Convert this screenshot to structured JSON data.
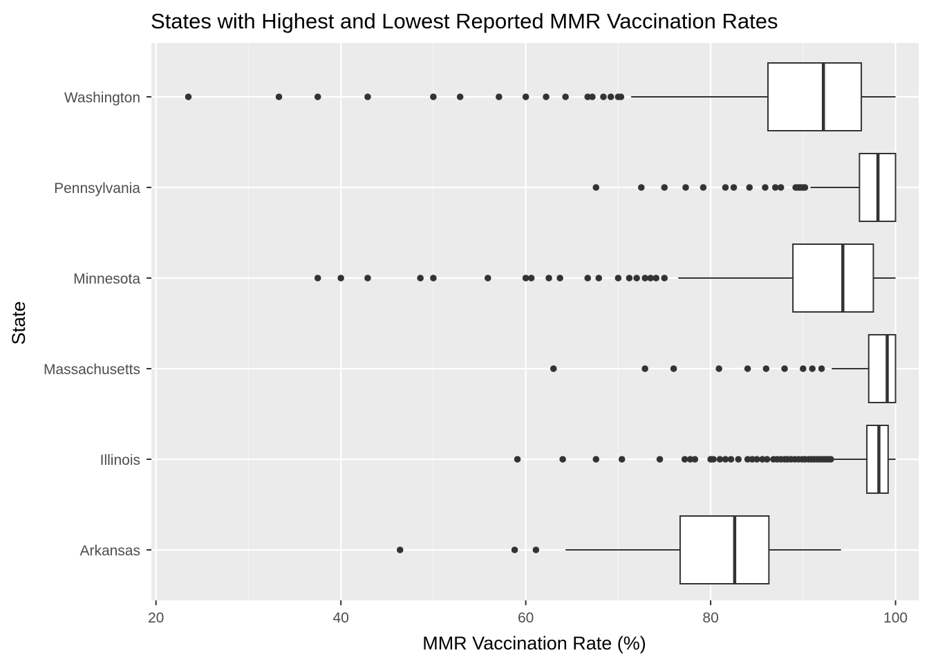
{
  "chart_data": {
    "type": "boxplot",
    "orientation": "horizontal",
    "title": "States with Highest and Lowest Reported MMR Vaccination Rates",
    "xlabel": "MMR Vaccination Rate (%)",
    "ylabel": "State",
    "xlim": [
      19.5,
      102.5
    ],
    "x_ticks": [
      20,
      40,
      60,
      80,
      100
    ],
    "x_tick_labels": [
      "20",
      "40",
      "60",
      "80",
      "100"
    ],
    "grid": true,
    "legend": "none",
    "categories": [
      "Washington",
      "Pennsylvania",
      "Minnesota",
      "Massachusetts",
      "Illinois",
      "Arkansas"
    ],
    "boxes": [
      {
        "category": "Washington",
        "whisker_low": 71.4,
        "q1": 86.2,
        "median": 92.2,
        "q3": 96.3,
        "whisker_high": 100,
        "outliers": [
          23.5,
          33.3,
          37.5,
          42.9,
          50.0,
          52.9,
          57.1,
          60.0,
          62.2,
          64.3,
          66.7,
          67.2,
          68.4,
          69.2,
          70.0,
          70.3
        ]
      },
      {
        "category": "Pennsylvania",
        "whisker_low": 90.8,
        "q1": 96.1,
        "median": 98.1,
        "q3": 100,
        "whisker_high": 100,
        "outliers": [
          67.6,
          72.5,
          75.0,
          77.3,
          79.2,
          81.6,
          82.5,
          84.2,
          85.9,
          87.0,
          87.6,
          89.2,
          89.4,
          89.6,
          89.8,
          90.0,
          90.2
        ]
      },
      {
        "category": "Minnesota",
        "whisker_low": 76.5,
        "q1": 88.9,
        "median": 94.3,
        "q3": 97.6,
        "whisker_high": 100,
        "outliers": [
          37.5,
          40.0,
          42.9,
          48.6,
          50.0,
          55.9,
          60.0,
          60.6,
          62.5,
          63.7,
          66.7,
          67.9,
          70.0,
          71.2,
          72.0,
          72.9,
          73.5,
          74.1,
          75.0
        ]
      },
      {
        "category": "Massachusetts",
        "whisker_low": 93.1,
        "q1": 97.1,
        "median": 99.1,
        "q3": 100,
        "whisker_high": 100,
        "outliers": [
          63.0,
          72.9,
          76.0,
          80.9,
          84.0,
          86.0,
          88.0,
          90.0,
          91.0,
          92.0
        ]
      },
      {
        "category": "Illinois",
        "whisker_low": 93.3,
        "q1": 96.9,
        "median": 98.2,
        "q3": 99.2,
        "whisker_high": 100,
        "outliers": [
          59.1,
          64.0,
          67.6,
          70.4,
          74.5,
          77.2,
          77.8,
          78.3,
          80.0,
          80.3,
          81.0,
          81.6,
          82.2,
          83.0,
          84.0,
          84.5,
          85.0,
          85.6,
          86.1,
          86.8,
          87.2,
          87.6,
          88.0,
          88.3,
          88.7,
          89.1,
          89.5,
          89.9,
          90.2,
          90.6,
          90.9,
          91.2,
          91.5,
          91.8,
          92.1,
          92.4,
          92.7,
          93.0
        ]
      },
      {
        "category": "Arkansas",
        "whisker_low": 64.3,
        "q1": 76.7,
        "median": 82.6,
        "q3": 86.3,
        "whisker_high": 94.1,
        "outliers": [
          46.4,
          58.8,
          61.1
        ]
      }
    ],
    "colors": {
      "panel_background": "#EBEBEB",
      "grid_major": "#FFFFFF",
      "grid_minor": "#F5F5F5",
      "box_fill": "#FFFFFF",
      "box_stroke": "#333333",
      "outlier": "#333333",
      "tick": "#333333",
      "tick_label": "#4D4D4D"
    }
  }
}
